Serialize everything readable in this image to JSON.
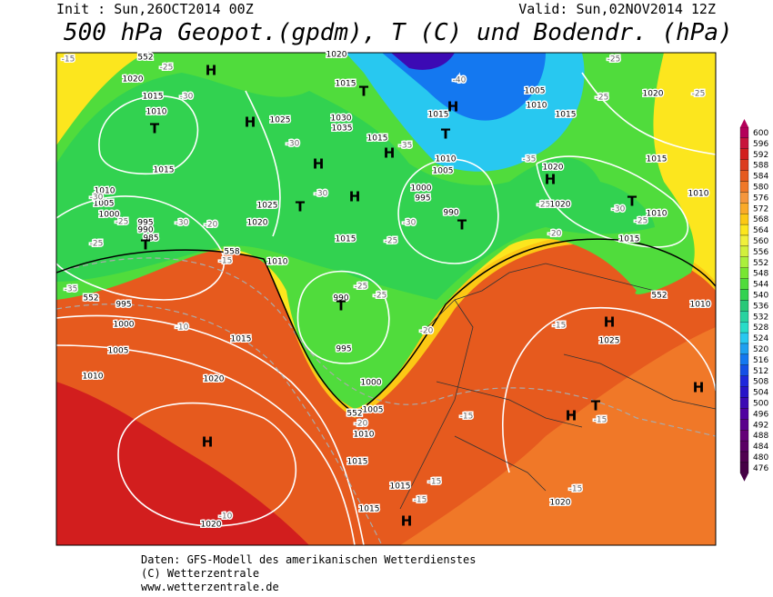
{
  "header": {
    "init": "Init : Sun,26OCT2014 00Z",
    "valid": "Valid: Sun,02NOV2014 12Z",
    "title": "500 hPa Geopot.(gpdm), T (C) und Bodendr. (hPa)"
  },
  "footer": {
    "lines": [
      "Daten: GFS-Modell des amerikanischen Wetterdienstes",
      "(C) Wetterzentrale",
      "www.wetterzentrale.de"
    ]
  },
  "legend": {
    "values": [
      600,
      596,
      592,
      588,
      584,
      580,
      576,
      572,
      568,
      564,
      560,
      556,
      552,
      548,
      544,
      540,
      536,
      532,
      528,
      524,
      520,
      516,
      512,
      508,
      504,
      500,
      496,
      492,
      488,
      484,
      480,
      476
    ],
    "colors": [
      "#b4005a",
      "#c8143c",
      "#d21e1e",
      "#dc3c1e",
      "#e65a1e",
      "#f07828",
      "#f5963c",
      "#faaa28",
      "#fcc814",
      "#fce61e",
      "#f0f03c",
      "#d2f03c",
      "#aaf03c",
      "#78e632",
      "#50dc3c",
      "#32d250",
      "#28c878",
      "#28d2a0",
      "#28dcc8",
      "#28c8f0",
      "#1ea0f0",
      "#1478f0",
      "#1450e6",
      "#1e28dc",
      "#2814c8",
      "#3c0ab4",
      "#5000a0",
      "#5a008c",
      "#640078",
      "#5a0064",
      "#500050",
      "#460046"
    ]
  },
  "map": {
    "labels": [
      "1020",
      "1015",
      "1010",
      "T",
      "1015",
      "1010",
      "1005",
      "1000",
      "995",
      "990",
      "985",
      "T",
      "-30",
      "-25",
      "-30",
      "-20",
      "-25",
      "H",
      "-25",
      "-30",
      "H",
      "1025",
      "-30",
      "1030",
      "1035",
      "H",
      "T",
      "H",
      "-30",
      "1025",
      "1020",
      "1015",
      "1010",
      "T",
      "1015",
      "-40",
      "1015",
      "H",
      "T",
      "1015",
      "-35",
      "H",
      "1010",
      "1005",
      "1000",
      "995",
      "990",
      "T",
      "-30",
      "-25",
      "1005",
      "1010",
      "1015",
      "-35",
      "1020",
      "H",
      "-25",
      "1020",
      "-30",
      "T",
      "1010",
      "-25",
      "1015",
      "-20",
      "1010",
      "-25",
      "-25",
      "1020",
      "-25",
      "1015",
      "1010",
      "552",
      "H",
      "-15",
      "1025",
      "H",
      "T",
      "H",
      "-15",
      "-15",
      "-15",
      "1020",
      "H",
      "1015",
      "-15",
      "1015",
      "-15",
      "1010",
      "1015",
      "-20",
      "552",
      "1005",
      "1000",
      "995",
      "990",
      "T",
      "-25",
      "-25",
      "-20",
      "558",
      "-15",
      "-35",
      "552",
      "995",
      "1000",
      "-10",
      "1005",
      "1015",
      "1010",
      "1020",
      "H",
      "-10",
      "1020",
      "-15",
      "552",
      "1020"
    ]
  }
}
